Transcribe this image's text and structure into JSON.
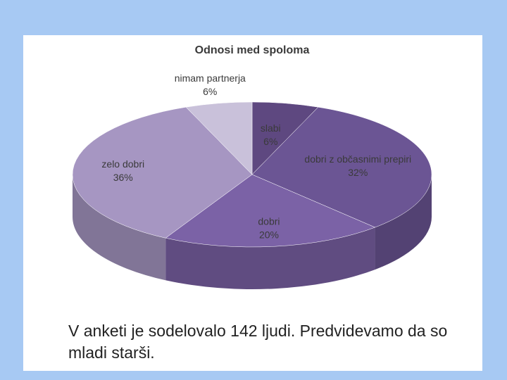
{
  "chart_data": {
    "type": "pie",
    "title": "Odnosi med spoloma",
    "categories": [
      "slabi",
      "dobri z občasnimi prepiri",
      "dobri",
      "zelo dobri",
      "nimam partnerja"
    ],
    "values": [
      6,
      32,
      20,
      36,
      6
    ],
    "value_labels": [
      "6%",
      "32%",
      "20%",
      "36%",
      "6%"
    ],
    "colors": [
      "#5e4880",
      "#6b5594",
      "#7b62a6",
      "#a696c2",
      "#c9c1da"
    ]
  },
  "caption": "V anketi je sodelovalo 142 ljudi. Predvidevamo da so mladi starši."
}
